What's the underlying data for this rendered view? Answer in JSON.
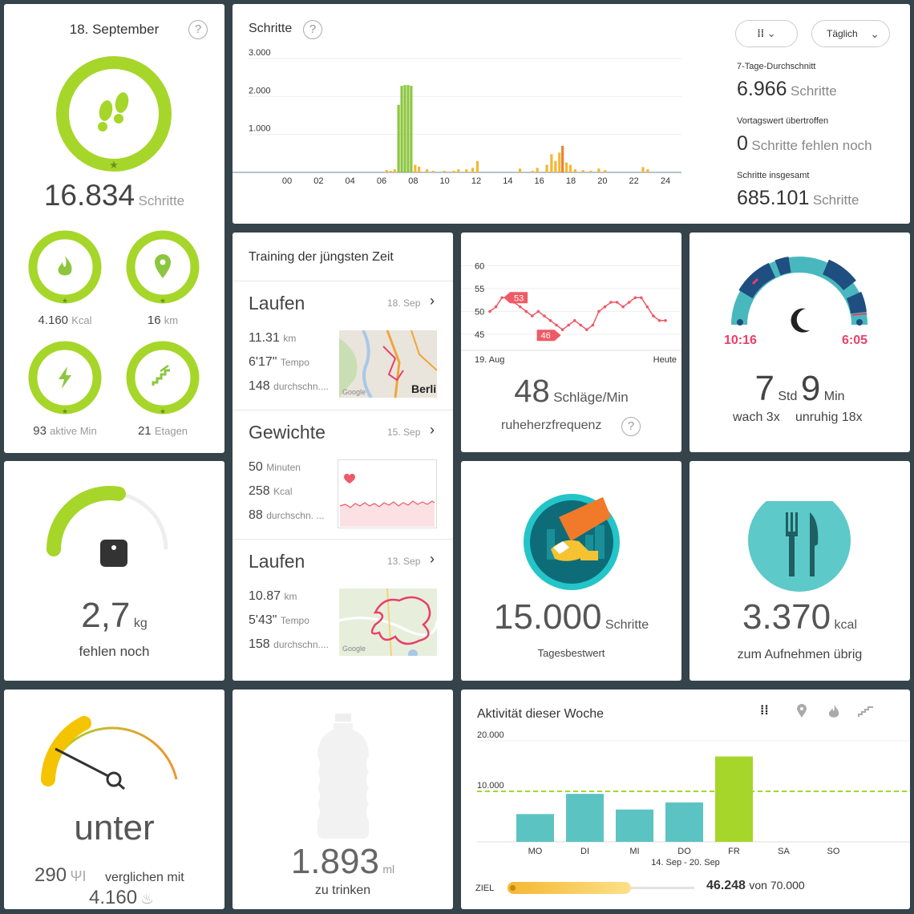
{
  "summary": {
    "date": "18. September",
    "steps_value": "16.834",
    "steps_unit": "Schritte",
    "kcal_value": "4.160",
    "kcal_unit": "Kcal",
    "km_value": "16",
    "km_unit": "km",
    "active_value": "93",
    "active_unit": "aktive Min",
    "floors_value": "21",
    "floors_unit": "Etagen"
  },
  "steps_tile": {
    "title": "Schritte",
    "filter_label": "Täglich",
    "avg_label": "7-Tage-Durchschnitt",
    "avg_value": "6.966",
    "avg_unit": "Schritte",
    "prev_label": "Vortagswert übertroffen",
    "prev_value": "0",
    "prev_unit": "Schritte fehlen noch",
    "total_label": "Schritte insgesamt",
    "total_value": "685.101",
    "total_unit": "Schritte"
  },
  "chart_data": [
    {
      "type": "bar",
      "title": "Schritte",
      "y_ticks": [
        "3.000",
        "2.000",
        "1.000"
      ],
      "x_ticks": [
        "00",
        "02",
        "04",
        "06",
        "08",
        "10",
        "12",
        "14",
        "16",
        "18",
        "20",
        "22",
        "24"
      ],
      "ylim": [
        0,
        3000
      ],
      "x_unit": "hour",
      "bars": [
        {
          "x": 6.65,
          "y": 60,
          "c": "#f5b731"
        },
        {
          "x": 6.9,
          "y": 40,
          "c": "#f5b731"
        },
        {
          "x": 7.15,
          "y": 80,
          "c": "#f5b731"
        },
        {
          "x": 7.4,
          "y": 1780,
          "c": "#8cc63f"
        },
        {
          "x": 7.6,
          "y": 2280,
          "c": "#8cc63f"
        },
        {
          "x": 7.8,
          "y": 2300,
          "c": "#8cc63f"
        },
        {
          "x": 8.0,
          "y": 2300,
          "c": "#8cc63f"
        },
        {
          "x": 8.2,
          "y": 2280,
          "c": "#8cc63f"
        },
        {
          "x": 8.45,
          "y": 200,
          "c": "#f5b731"
        },
        {
          "x": 8.7,
          "y": 150,
          "c": "#f5b731"
        },
        {
          "x": 9.2,
          "y": 80,
          "c": "#f5b731"
        },
        {
          "x": 9.6,
          "y": 40,
          "c": "#f5b731"
        },
        {
          "x": 10.3,
          "y": 40,
          "c": "#f5b731"
        },
        {
          "x": 10.9,
          "y": 40,
          "c": "#f5b731"
        },
        {
          "x": 11.2,
          "y": 80,
          "c": "#f5b731"
        },
        {
          "x": 11.7,
          "y": 80,
          "c": "#f5b731"
        },
        {
          "x": 12.1,
          "y": 120,
          "c": "#f5b731"
        },
        {
          "x": 12.4,
          "y": 300,
          "c": "#f5b731"
        },
        {
          "x": 15.1,
          "y": 100,
          "c": "#f5b731"
        },
        {
          "x": 15.9,
          "y": 40,
          "c": "#f5b731"
        },
        {
          "x": 16.2,
          "y": 120,
          "c": "#f5b731"
        },
        {
          "x": 16.8,
          "y": 200,
          "c": "#f5b731"
        },
        {
          "x": 17.1,
          "y": 480,
          "c": "#f5b731"
        },
        {
          "x": 17.35,
          "y": 300,
          "c": "#f5b731"
        },
        {
          "x": 17.6,
          "y": 520,
          "c": "#f5b731"
        },
        {
          "x": 17.8,
          "y": 700,
          "c": "#e8833a"
        },
        {
          "x": 18.05,
          "y": 260,
          "c": "#f5b731"
        },
        {
          "x": 18.3,
          "y": 200,
          "c": "#f5b731"
        },
        {
          "x": 18.6,
          "y": 80,
          "c": "#f5b731"
        },
        {
          "x": 19.1,
          "y": 60,
          "c": "#f5b731"
        },
        {
          "x": 19.6,
          "y": 40,
          "c": "#f5b731"
        },
        {
          "x": 20.1,
          "y": 100,
          "c": "#f5b731"
        },
        {
          "x": 20.5,
          "y": 60,
          "c": "#f5b731"
        },
        {
          "x": 22.9,
          "y": 140,
          "c": "#f5b731"
        },
        {
          "x": 23.2,
          "y": 80,
          "c": "#f5b731"
        }
      ]
    },
    {
      "type": "line",
      "title": "ruheherzfrequenz",
      "y_ticks": [
        "60",
        "55",
        "50",
        "45"
      ],
      "x_labels": [
        "19. Aug",
        "Heute"
      ],
      "ylim": [
        42,
        62
      ],
      "values": [
        50,
        51,
        53,
        53,
        52,
        51,
        50,
        49,
        50,
        49,
        48,
        47,
        46,
        47,
        48,
        47,
        46,
        47,
        50,
        51,
        52,
        52,
        51,
        52,
        53,
        53,
        51,
        49,
        48,
        48
      ],
      "max_label": "53",
      "min_label": "46"
    },
    {
      "type": "bar",
      "title": "Aktivität dieser Woche",
      "categories": [
        "MO",
        "DI",
        "MI",
        "DO",
        "FR",
        "SA",
        "SO"
      ],
      "values": [
        5500,
        9500,
        6400,
        7800,
        16900,
        0,
        0
      ],
      "y_ticks": [
        "20.000",
        "10.000"
      ],
      "ylim": [
        0,
        20000
      ],
      "goal_line": 10000,
      "colors": [
        "#5cc3c3",
        "#5cc3c3",
        "#5cc3c3",
        "#5cc3c3",
        "#a6d62a",
        "#5cc3c3",
        "#5cc3c3"
      ],
      "x_caption": "14. Sep - 20. Sep"
    }
  ],
  "training": {
    "title": "Training der jüngsten Zeit",
    "items": [
      {
        "name": "Laufen",
        "date": "18. Sep",
        "l1v": "11.31",
        "l1u": "km",
        "l2v": "6'17\"",
        "l2u": "Tempo",
        "l3v": "148",
        "l3u": "durchschn...."
      },
      {
        "name": "Gewichte",
        "date": "15. Sep",
        "l1v": "50",
        "l1u": "Minuten",
        "l2v": "258",
        "l2u": "Kcal",
        "l3v": "88",
        "l3u": "durchschn. ..."
      },
      {
        "name": "Laufen",
        "date": "13. Sep",
        "l1v": "10.87",
        "l1u": "km",
        "l2v": "5'43\"",
        "l2u": "Tempo",
        "l3v": "158",
        "l3u": "durchschn...."
      }
    ],
    "map_label": "Berli",
    "google": "Google"
  },
  "heart": {
    "value": "48",
    "unit": "Schläge/Min",
    "label": "ruheherzfrequenz"
  },
  "sleep": {
    "start": "10:16",
    "end": "6:05",
    "hours": "7",
    "hours_unit": "Std",
    "minutes": "9",
    "minutes_unit": "Min",
    "awake": "wach 3x",
    "restless": "unruhig 18x"
  },
  "weight": {
    "progress_fraction": 0.55,
    "value": "2,7",
    "unit": "kg",
    "label": "fehlen noch"
  },
  "best": {
    "value": "15.000",
    "unit": "Schritte",
    "label": "Tagesbestwert"
  },
  "food": {
    "value": "3.370",
    "unit": "kcal",
    "label": "zum Aufnehmen übrig"
  },
  "balance": {
    "status": "unter",
    "intake": "290",
    "compare": "verglichen mit",
    "burned": "4.160"
  },
  "water": {
    "value": "1.893",
    "unit": "ml",
    "label": "zu trinken"
  },
  "week": {
    "goal_label": "ZIEL",
    "goal_value": "46.248",
    "goal_of": "von 70.000",
    "goal_fraction": 0.66
  }
}
